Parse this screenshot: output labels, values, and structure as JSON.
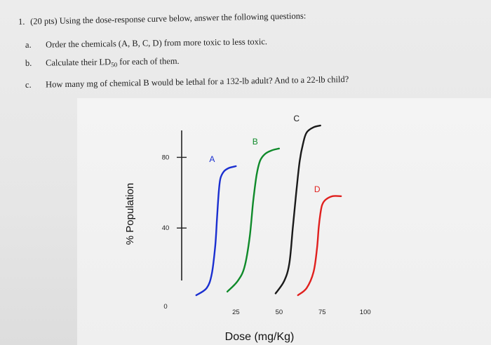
{
  "question": {
    "number": "1.",
    "stem": "(20 pts) Using the dose-response curve below, answer the following questions:",
    "parts": [
      {
        "marker": "a.",
        "text": "Order the chemicals (A, B, C, D) from more toxic to less toxic."
      },
      {
        "marker": "b.",
        "text_before": "Calculate their LD",
        "subscript": "50",
        "text_after": " for each of them."
      },
      {
        "marker": "c.",
        "text": "How many mg of chemical B would be lethal for a 132-lb adult? And to a 22-lb child?"
      }
    ]
  },
  "colors": {
    "A": "#1a2fd0",
    "B": "#0f8a2a",
    "C": "#1a1a1a",
    "D": "#e0201e",
    "axis": "#222222"
  },
  "chart_data": {
    "type": "line",
    "xlabel": "Dose (mg/Kg)",
    "ylabel": "% Population",
    "xlim": [
      0,
      105
    ],
    "ylim": [
      0,
      100
    ],
    "x_ticks": [
      25,
      50,
      75,
      100
    ],
    "y_ticks": [
      0,
      40,
      80
    ],
    "grid": false,
    "legend": "none (series labeled inline)",
    "series": [
      {
        "name": "A",
        "x": [
          4,
          10,
          13,
          15,
          16,
          17,
          18,
          20,
          23,
          27
        ],
        "y": [
          2,
          6,
          14,
          30,
          45,
          60,
          68,
          72,
          74,
          75
        ]
      },
      {
        "name": "B",
        "x": [
          22,
          28,
          32,
          35,
          37,
          39,
          41,
          44,
          48,
          52
        ],
        "y": [
          4,
          10,
          18,
          35,
          55,
          70,
          78,
          82,
          84,
          85
        ]
      },
      {
        "name": "C",
        "x": [
          50,
          55,
          58,
          60,
          62,
          64,
          66,
          68,
          72,
          76
        ],
        "y": [
          3,
          10,
          20,
          40,
          60,
          78,
          88,
          94,
          97,
          98
        ]
      },
      {
        "name": "D",
        "x": [
          63,
          68,
          72,
          74,
          75,
          76,
          77,
          79,
          83,
          88
        ],
        "y": [
          2,
          6,
          15,
          28,
          40,
          48,
          53,
          56,
          58,
          58
        ]
      }
    ]
  }
}
